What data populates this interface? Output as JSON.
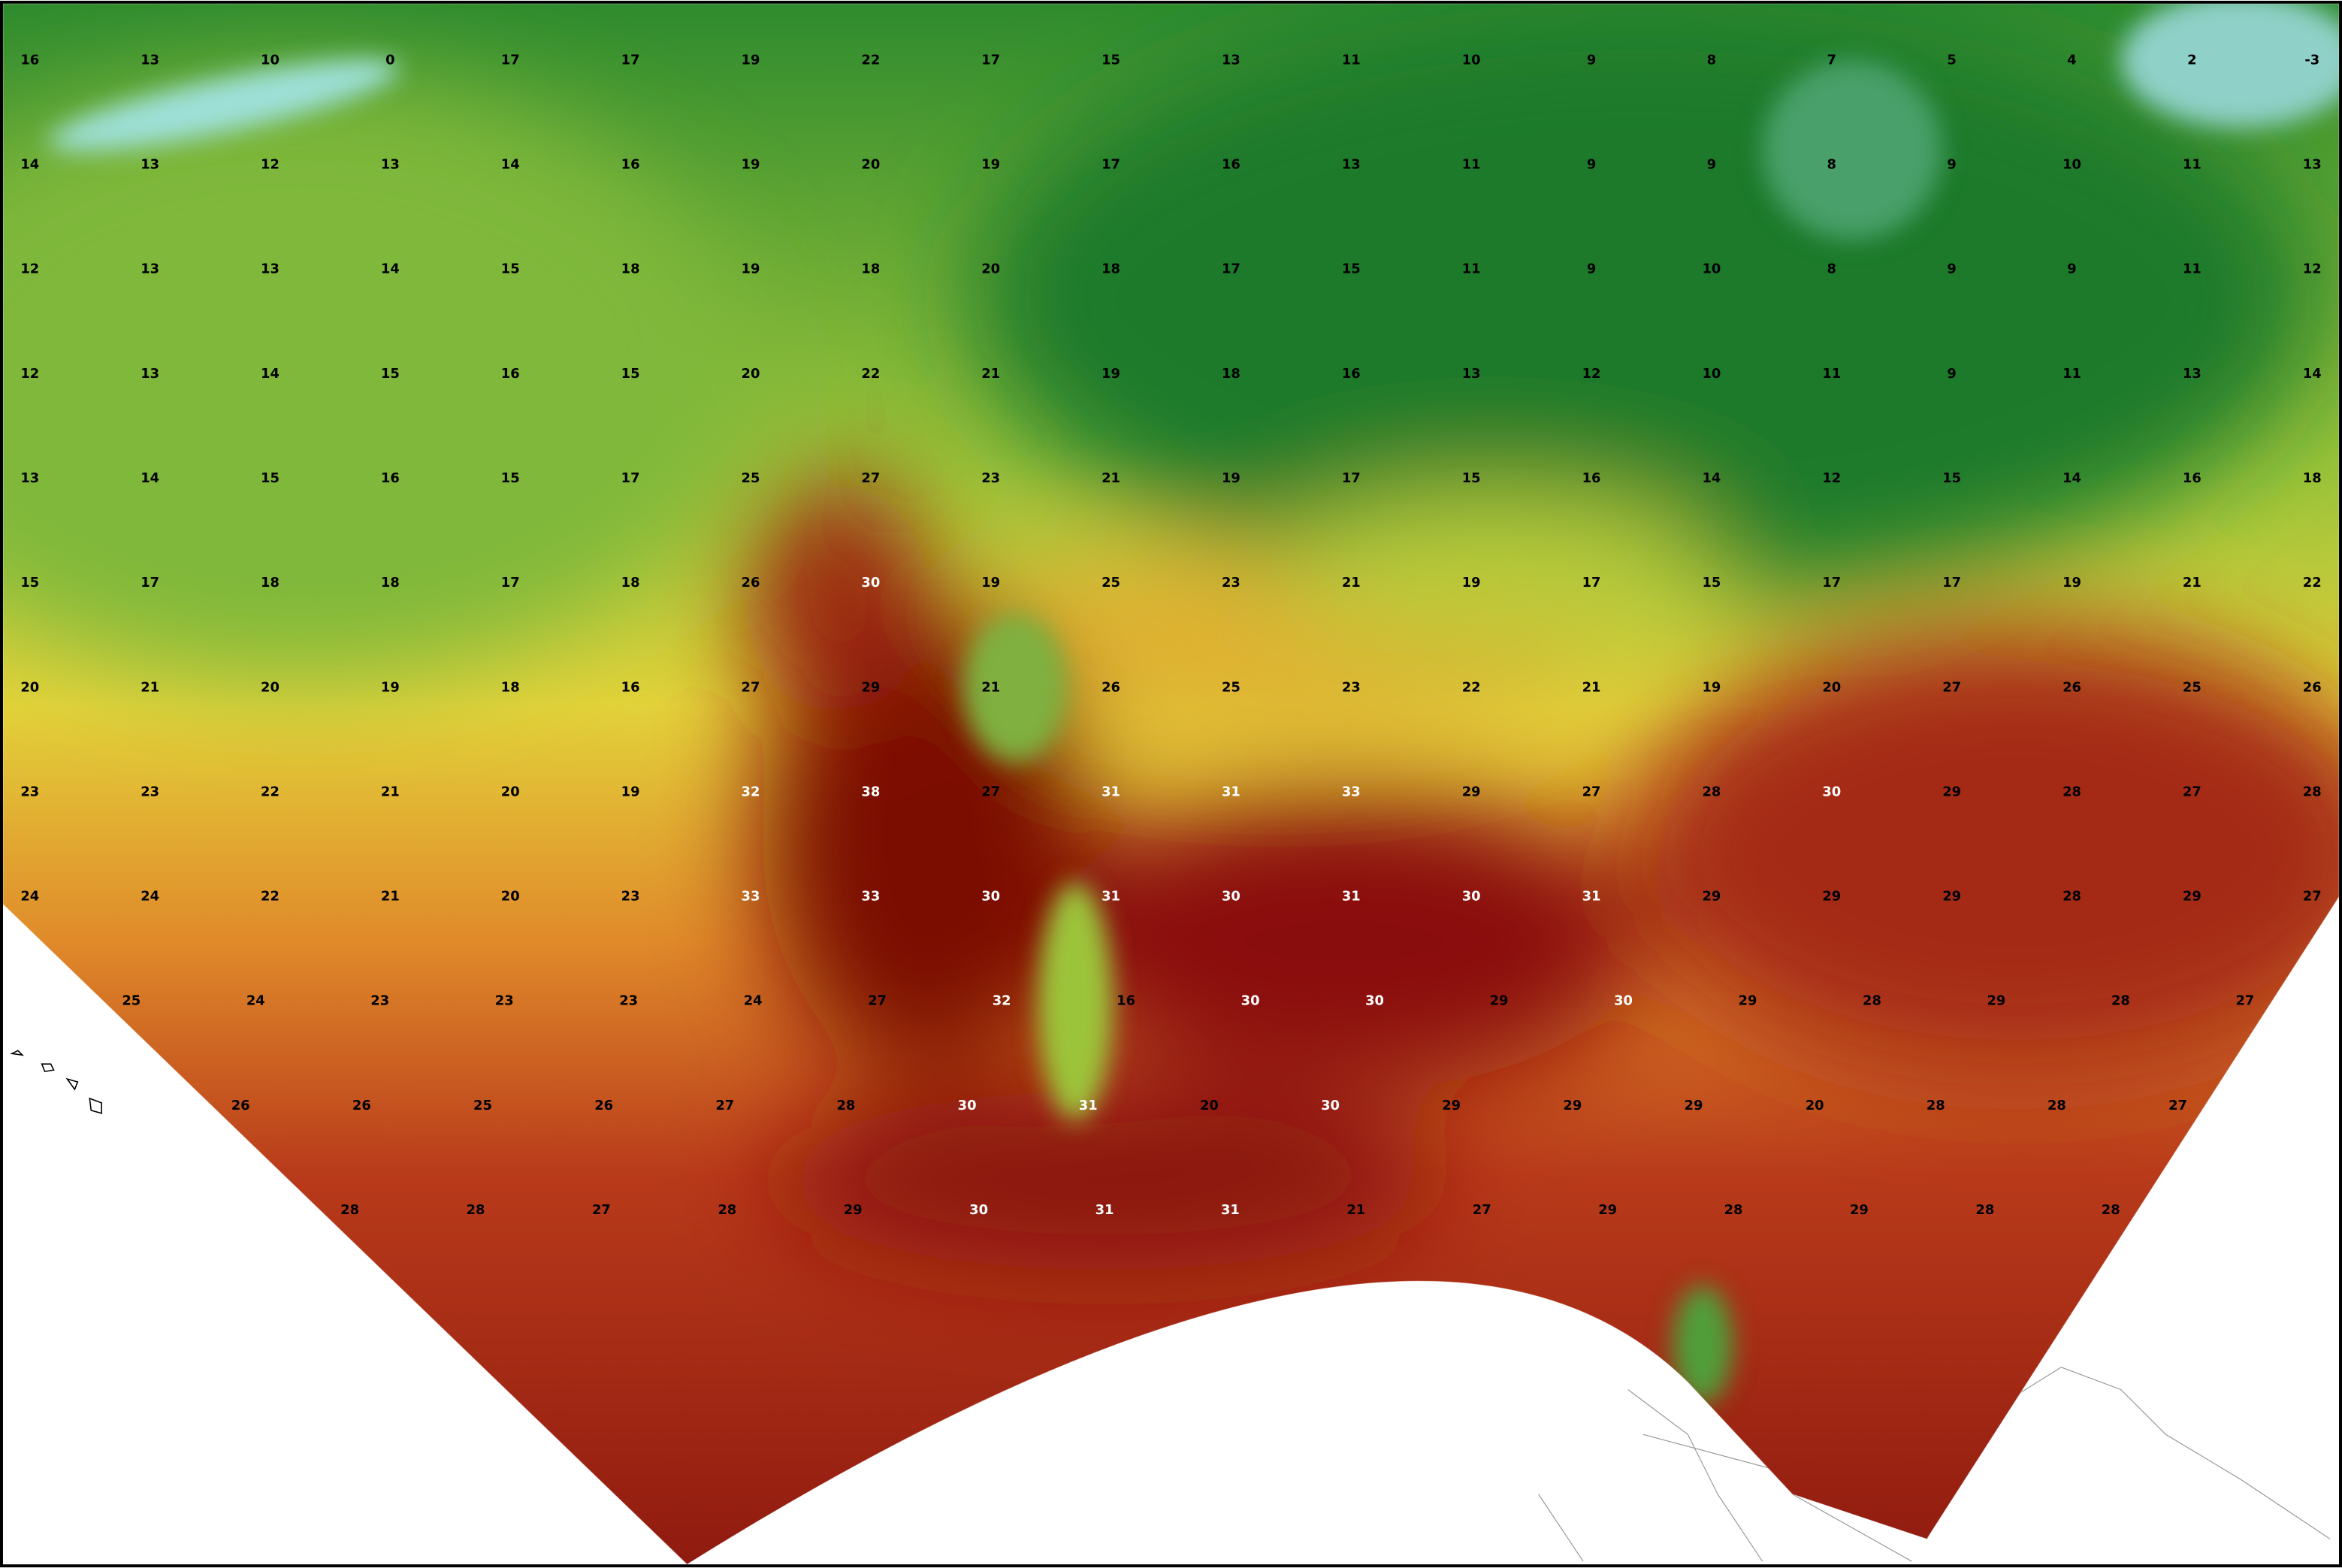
{
  "map": {
    "rows": [
      [
        16,
        13,
        10,
        0,
        17,
        17,
        19,
        22,
        17,
        15,
        13,
        11,
        10,
        9,
        8,
        7,
        5,
        4,
        2,
        -3
      ],
      [
        14,
        13,
        12,
        13,
        14,
        16,
        19,
        20,
        19,
        17,
        16,
        13,
        11,
        9,
        9,
        8,
        9,
        10,
        11,
        13
      ],
      [
        12,
        13,
        13,
        14,
        15,
        18,
        19,
        18,
        20,
        18,
        17,
        15,
        11,
        9,
        10,
        8,
        9,
        9,
        11,
        12
      ],
      [
        12,
        13,
        14,
        15,
        16,
        15,
        20,
        22,
        21,
        19,
        18,
        16,
        13,
        12,
        10,
        11,
        9,
        11,
        13,
        14
      ],
      [
        13,
        14,
        15,
        16,
        15,
        17,
        25,
        27,
        23,
        21,
        19,
        17,
        15,
        16,
        14,
        12,
        15,
        14,
        16,
        18
      ],
      [
        15,
        17,
        18,
        18,
        17,
        18,
        26,
        30,
        19,
        25,
        23,
        21,
        19,
        17,
        15,
        17,
        17,
        19,
        21,
        22
      ],
      [
        20,
        21,
        20,
        19,
        18,
        16,
        27,
        29,
        21,
        26,
        25,
        23,
        22,
        21,
        19,
        20,
        27,
        26,
        25,
        26
      ],
      [
        23,
        23,
        22,
        21,
        20,
        19,
        32,
        38,
        27,
        31,
        31,
        33,
        29,
        27,
        28,
        30,
        29,
        28,
        27,
        28
      ],
      [
        24,
        24,
        22,
        21,
        20,
        23,
        33,
        33,
        30,
        31,
        30,
        31,
        30,
        31,
        29,
        29,
        29,
        28,
        29,
        27
      ],
      [
        25,
        24,
        23,
        23,
        23,
        24,
        27,
        32,
        16,
        30,
        30,
        29,
        30,
        29,
        28,
        29,
        28,
        27
      ],
      [
        26,
        26,
        25,
        26,
        27,
        28,
        30,
        31,
        20,
        30,
        29,
        29,
        29,
        20,
        28,
        28,
        27
      ],
      [
        28,
        28,
        27,
        28,
        29,
        30,
        31,
        31,
        21,
        27,
        29,
        28,
        29,
        28,
        28
      ]
    ]
  }
}
